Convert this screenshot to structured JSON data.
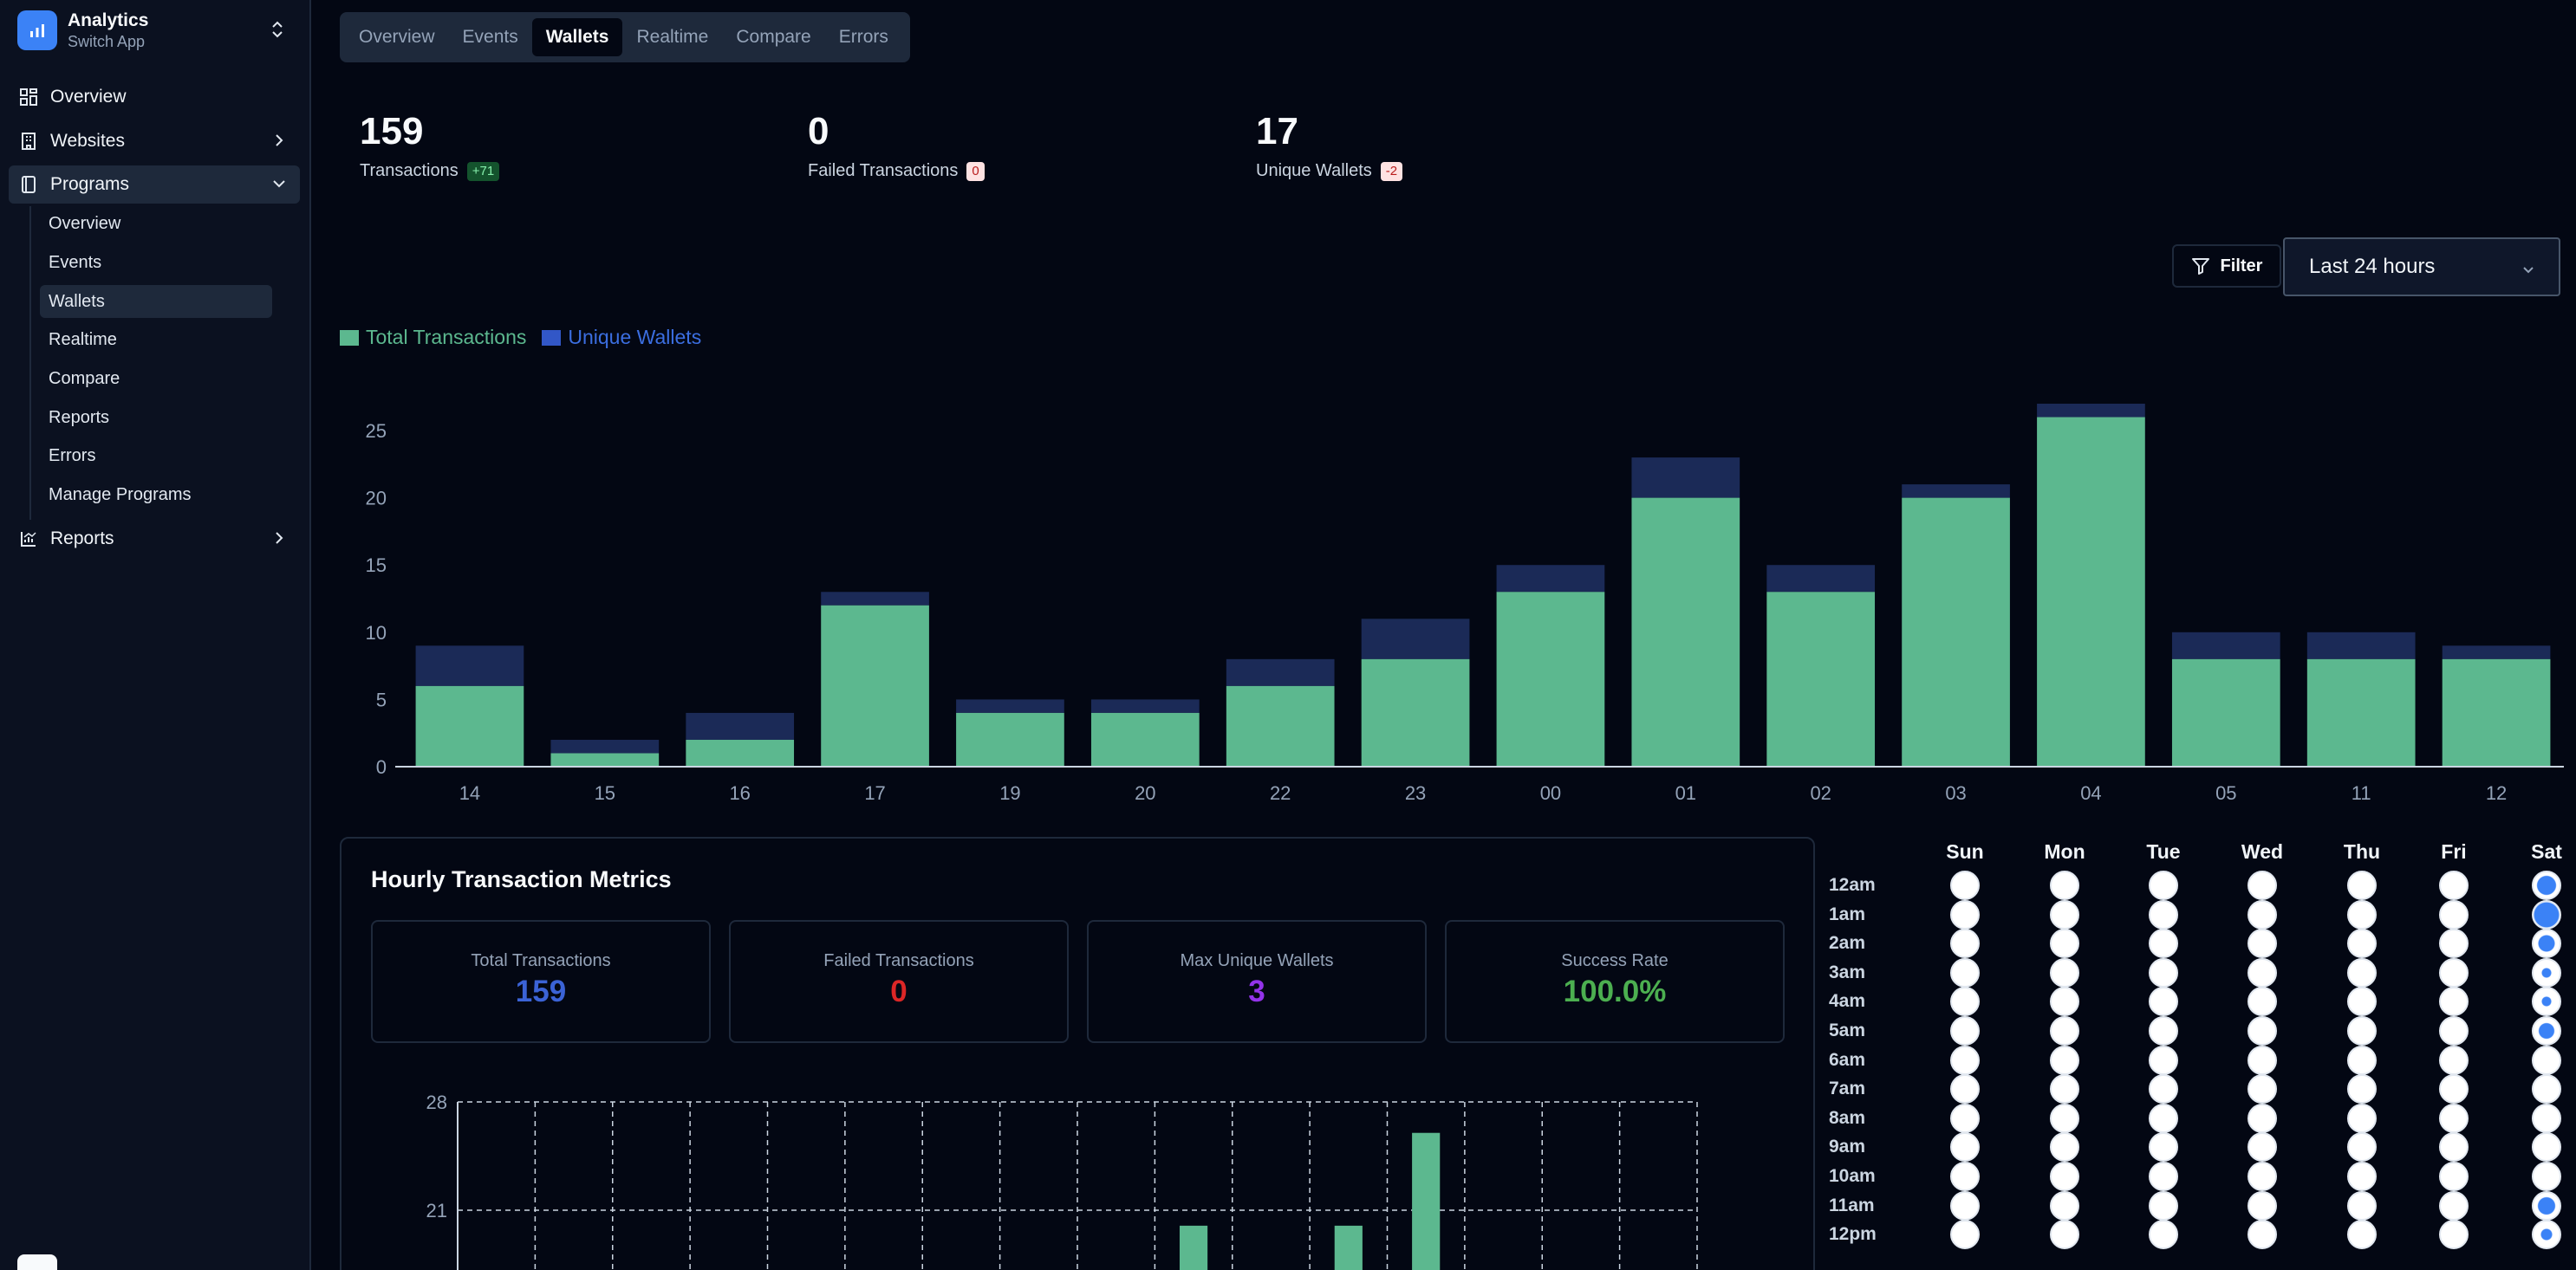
{
  "app": {
    "title": "Analytics",
    "subtitle": "Switch App"
  },
  "sidebar": {
    "items": [
      {
        "label": "Overview",
        "icon": "grid-icon"
      },
      {
        "label": "Websites",
        "icon": "building-icon"
      },
      {
        "label": "Programs",
        "icon": "program-icon"
      },
      {
        "label": "Reports",
        "icon": "chart-line-icon"
      }
    ],
    "program_sub_items": [
      "Overview",
      "Events",
      "Wallets",
      "Realtime",
      "Compare",
      "Reports",
      "Errors",
      "Manage Programs"
    ],
    "active_sub_item": "Wallets"
  },
  "tabs": [
    "Overview",
    "Events",
    "Wallets",
    "Realtime",
    "Compare",
    "Errors"
  ],
  "active_tab": "Wallets",
  "stats": [
    {
      "value": "159",
      "label": "Transactions",
      "badge": "+71",
      "badge_type": "green"
    },
    {
      "value": "0",
      "label": "Failed Transactions",
      "badge": "0",
      "badge_type": "red"
    },
    {
      "value": "17",
      "label": "Unique Wallets",
      "badge": "-2",
      "badge_type": "red"
    }
  ],
  "filter": {
    "label": "Filter"
  },
  "range": {
    "selected": "Last 24 hours"
  },
  "colors": {
    "green": "#5cb88f",
    "navy": "#1b2a57",
    "blue_legend": "#3257c7",
    "accent": "#3b82f6",
    "red": "#dc2626",
    "purple": "#9333ea",
    "success": "#4caf50"
  },
  "chart_data": {
    "type": "bar",
    "stacked": true,
    "categories": [
      "14",
      "15",
      "16",
      "17",
      "19",
      "20",
      "22",
      "23",
      "00",
      "01",
      "02",
      "03",
      "04",
      "05",
      "11",
      "12"
    ],
    "series": [
      {
        "name": "Total Transactions",
        "values": [
          6,
          1,
          2,
          12,
          4,
          4,
          6,
          8,
          13,
          20,
          13,
          20,
          26,
          8,
          8,
          8
        ]
      },
      {
        "name": "Unique Wallets",
        "values": [
          3,
          1,
          2,
          1,
          1,
          1,
          2,
          3,
          2,
          3,
          2,
          1,
          1,
          2,
          2,
          1
        ]
      }
    ],
    "ylim": [
      0,
      27
    ],
    "yticks": [
      0,
      5,
      10,
      15,
      20,
      25
    ],
    "grid": false,
    "legend": "top-left"
  },
  "metrics": {
    "title": "Hourly Transaction Metrics",
    "cards": [
      {
        "label": "Total Transactions",
        "value": "159",
        "color": "#3b63d6"
      },
      {
        "label": "Failed Transactions",
        "value": "0",
        "color": "#dc2626"
      },
      {
        "label": "Max Unique Wallets",
        "value": "3",
        "color": "#9333ea"
      },
      {
        "label": "Success Rate",
        "value": "100.0%",
        "color": "#4caf50"
      }
    ],
    "hourly_chart": {
      "type": "bar",
      "yticks": [
        21,
        28
      ],
      "ylim": [
        0,
        28
      ],
      "grid": true,
      "slots": 16,
      "bars": [
        {
          "slot": 9,
          "value": 20
        },
        {
          "slot": 11,
          "value": 20
        },
        {
          "slot": 12,
          "value": 26
        }
      ]
    }
  },
  "heatmap": {
    "days": [
      "Sun",
      "Mon",
      "Tue",
      "Wed",
      "Thu",
      "Fri",
      "Sat"
    ],
    "hours": [
      "12am",
      "1am",
      "2am",
      "3am",
      "4am",
      "5am",
      "6am",
      "7am",
      "8am",
      "9am",
      "10am",
      "11am",
      "12pm"
    ],
    "sat_intensity": [
      0.7,
      1.0,
      0.55,
      0.2,
      0.2,
      0.5,
      0,
      0,
      0,
      0,
      0,
      0.6,
      0.25
    ]
  }
}
